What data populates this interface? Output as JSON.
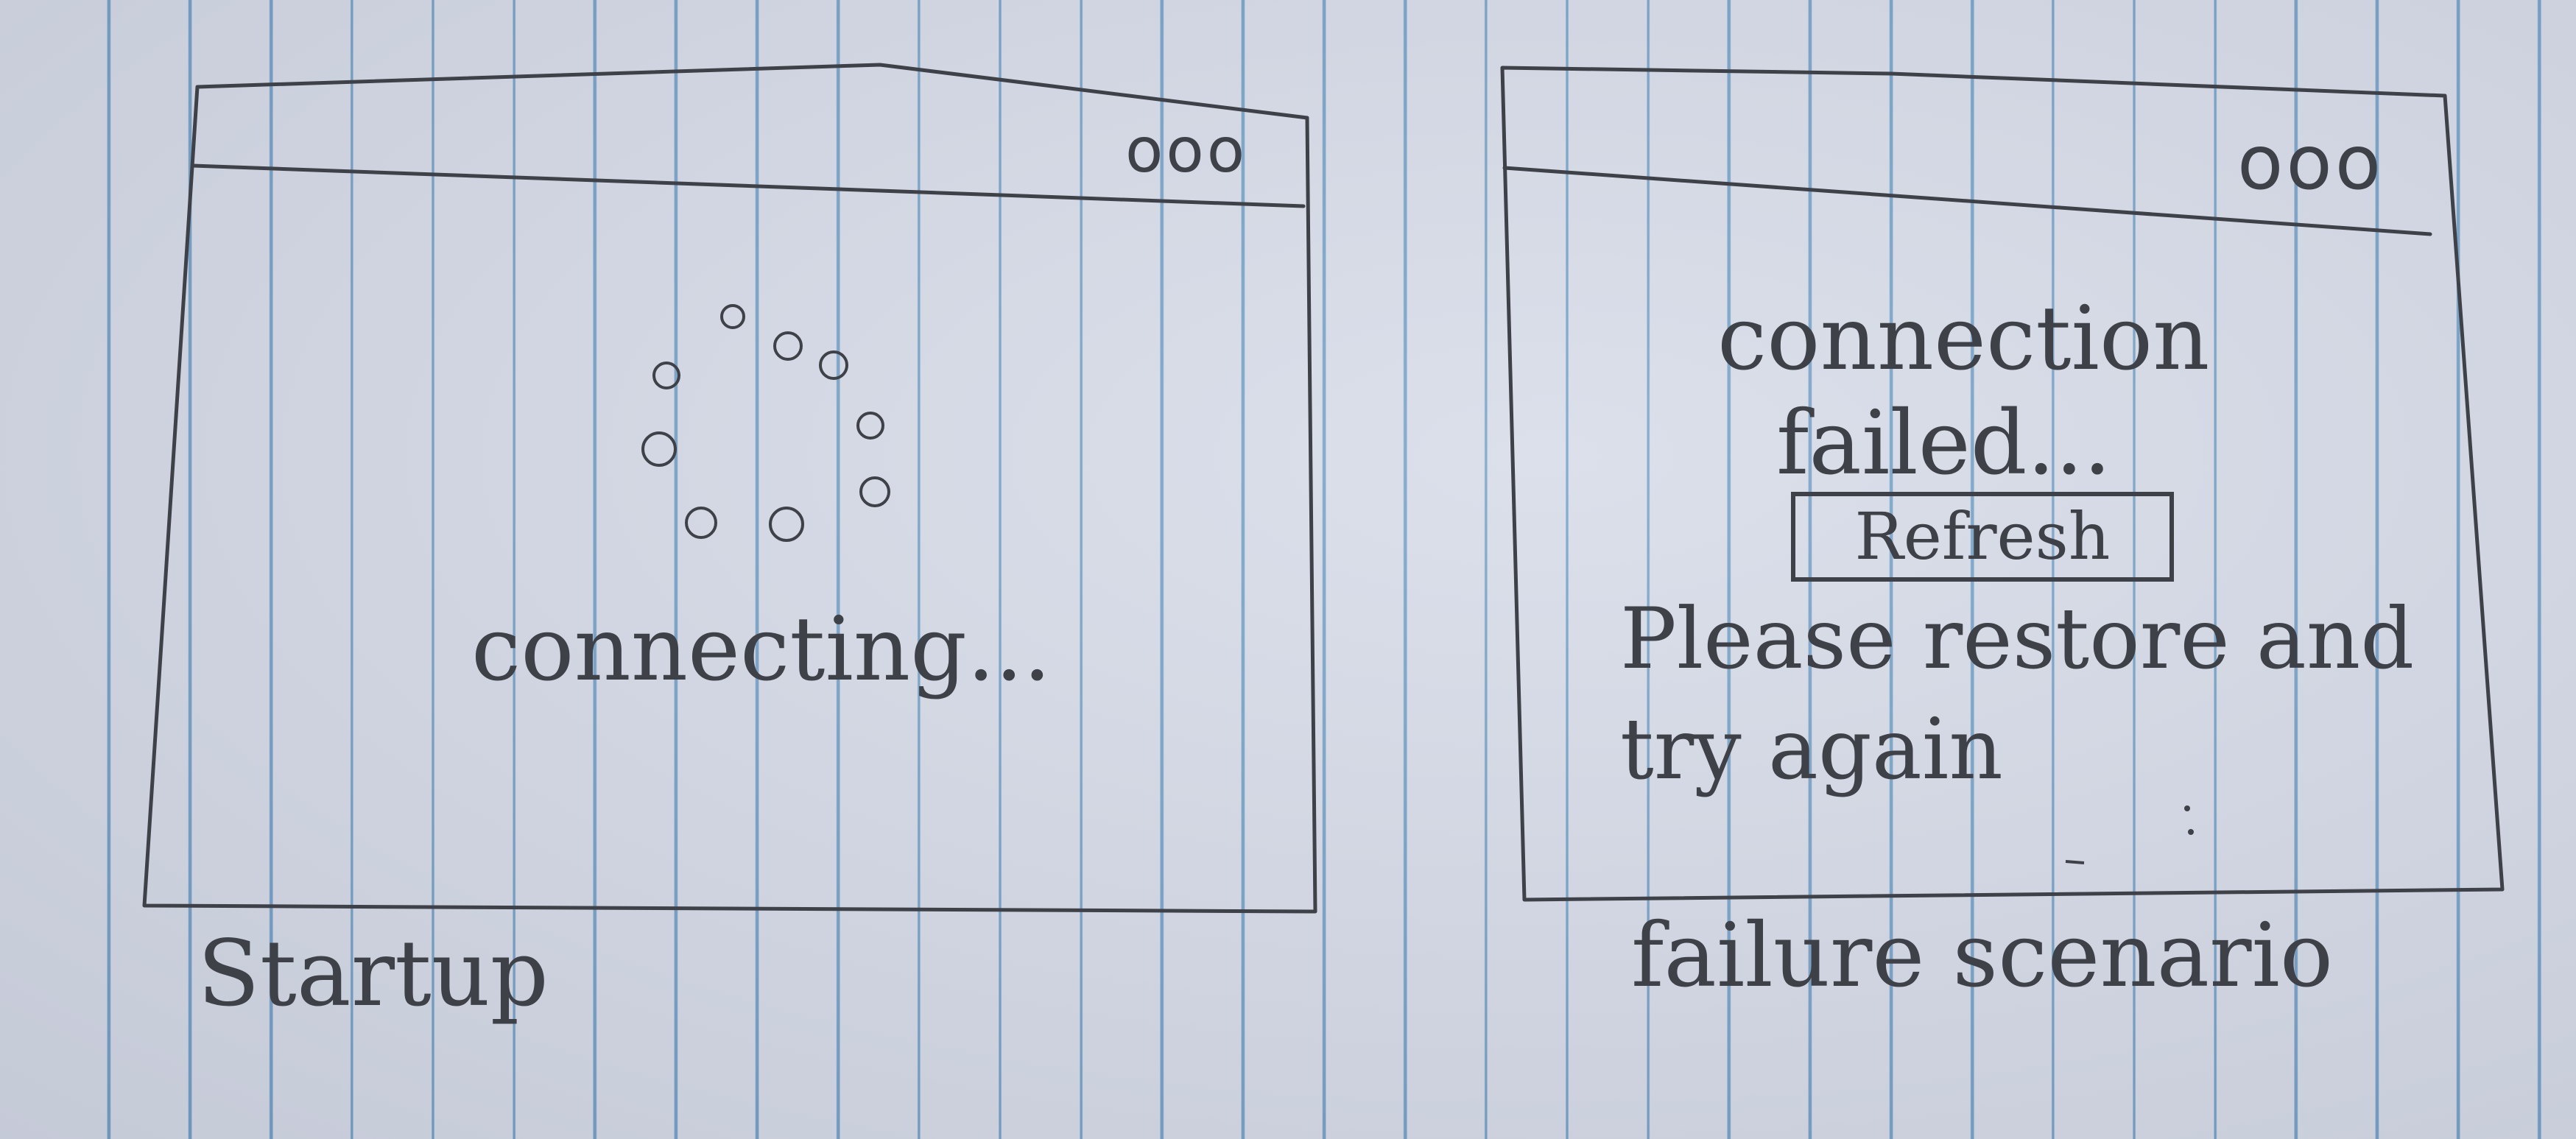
{
  "startup_screen": {
    "window_controls": "ooo",
    "status_text": "connecting...",
    "caption": "Startup"
  },
  "failure_screen": {
    "window_controls": "ooo",
    "message_line1": "connection",
    "message_line2": "failed...",
    "refresh_label": "Refresh",
    "instruction_line1": "Please restore and",
    "instruction_line2": "try again",
    "caption": "failure scenario"
  },
  "colors": {
    "paper": "#d4d9e6",
    "rule_lines": "#6f9cc4",
    "pencil": "#3e4148"
  },
  "icons": {
    "spinner": "loading-spinner-icon",
    "window_controls": "window-controls-icon"
  }
}
